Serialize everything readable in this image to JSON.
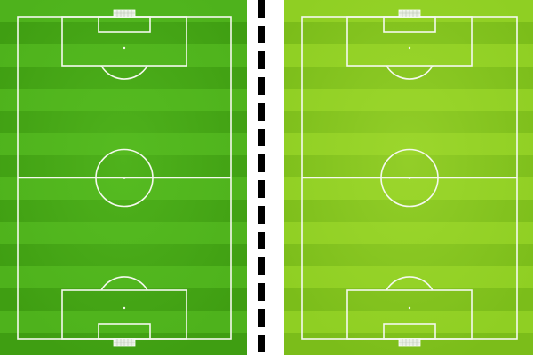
{
  "scene": {
    "background": "#ffffff",
    "line_color": "#f4f8ee"
  },
  "pitches": [
    {
      "id": "left",
      "stripe_light": "#4eb21c",
      "stripe_dark": "#3f9e12",
      "center_glow": "#5cc224"
    },
    {
      "id": "right",
      "stripe_light": "#8fcf23",
      "stripe_dark": "#7bbd1a",
      "center_glow": "#a6dc34"
    }
  ],
  "divider": {
    "style": "dashed",
    "color": "#000000"
  }
}
